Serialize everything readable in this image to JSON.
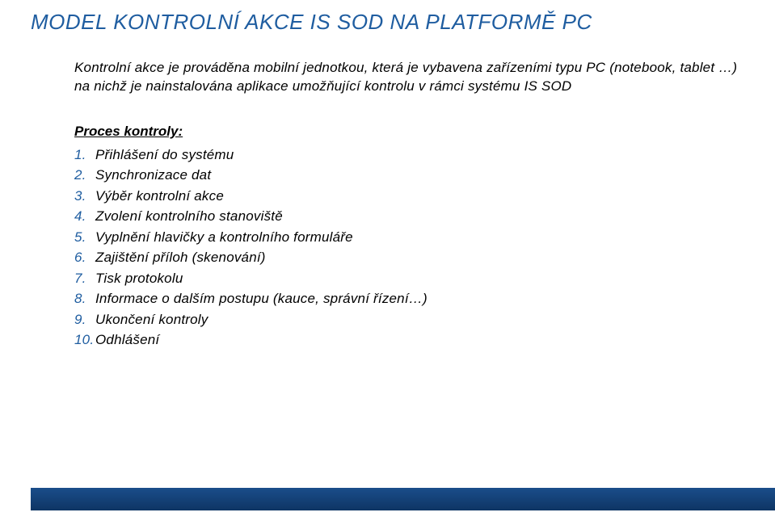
{
  "title": "MODEL KONTROLNÍ AKCE IS SOD NA PLATFORMĚ PC",
  "intro": "Kontrolní akce je prováděna mobilní jednotkou, která je vybavena zařízeními typu PC (notebook, tablet …) na nichž je nainstalována aplikace umožňující kontrolu v rámci systému IS SOD",
  "procesHeading": "Proces kontroly:",
  "steps": [
    "Přihlášení do systému",
    "Synchronizace dat",
    "Výběr kontrolní akce",
    "Zvolení kontrolního stanoviště",
    "Vyplnění hlavičky a kontrolního formuláře",
    "Zajištění příloh (skenování)",
    "Tisk protokolu",
    "Informace o dalším postupu (kauce, správní řízení…)",
    "Ukončení kontroly",
    "Odhlášení"
  ],
  "colors": {
    "titleColor": "#1f5da0",
    "listNumberColor": "#1f5da0",
    "textColor": "#000000",
    "background": "#ffffff",
    "footerGradientTop": "#1a4d8a",
    "footerGradientBottom": "#0e3564"
  },
  "typography": {
    "titleFontSize": 26,
    "bodyFontSize": 17,
    "fontStyle": "italic",
    "fontFamily": "Arial"
  }
}
